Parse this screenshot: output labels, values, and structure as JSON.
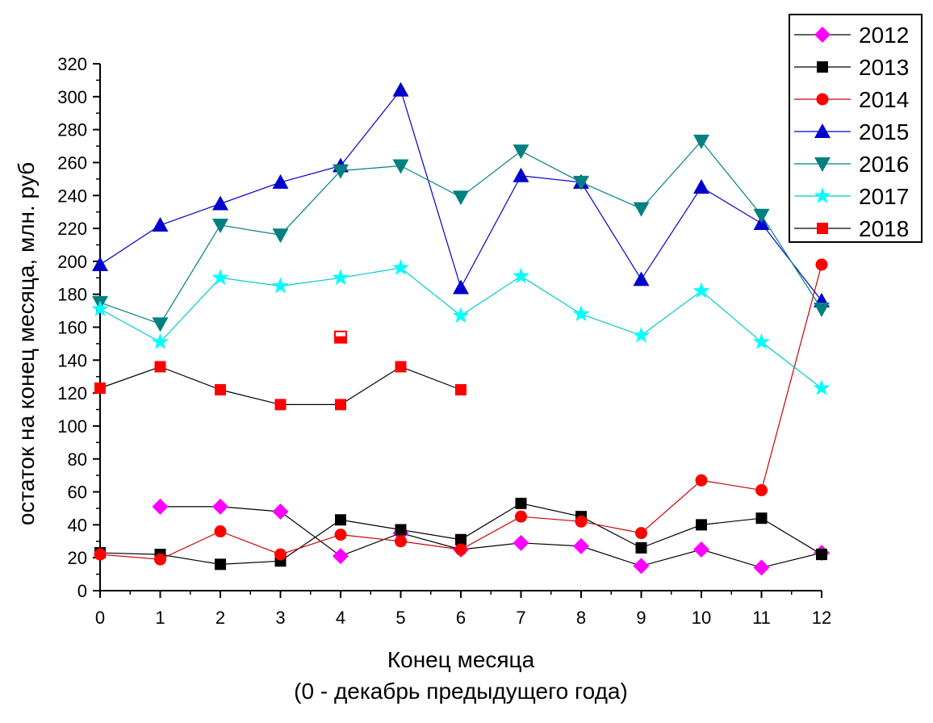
{
  "chart_data": {
    "type": "line",
    "xlabel": "Конец месяца",
    "xlabel_line2": "(0 - декабрь предыдущего года)",
    "ylabel": "остаток на конец месяца, млн. руб",
    "xlim": [
      0,
      12
    ],
    "ylim": [
      0,
      320
    ],
    "x_ticks": [
      0,
      1,
      2,
      3,
      4,
      5,
      6,
      7,
      8,
      9,
      10,
      11,
      12
    ],
    "y_ticks": [
      0,
      20,
      40,
      60,
      80,
      100,
      120,
      140,
      160,
      180,
      200,
      220,
      240,
      260,
      280,
      300,
      320
    ],
    "grid": false,
    "legend_position": "top-right",
    "series": [
      {
        "name": "2012",
        "marker": "diamond",
        "color": "#ff00ff",
        "line_color": "#000000",
        "x": [
          1,
          2,
          3,
          4,
          5,
          6,
          7,
          8,
          9,
          10,
          11,
          12
        ],
        "values": [
          51,
          51,
          48,
          21,
          35,
          25,
          29,
          27,
          15,
          25,
          14,
          23
        ]
      },
      {
        "name": "2013",
        "marker": "square",
        "color": "#000000",
        "line_color": "#000000",
        "x": [
          0,
          1,
          2,
          3,
          4,
          5,
          6,
          7,
          8,
          9,
          10,
          11,
          12
        ],
        "values": [
          23,
          22,
          16,
          18,
          43,
          37,
          31,
          53,
          45,
          26,
          40,
          44,
          22
        ]
      },
      {
        "name": "2014",
        "marker": "circle",
        "color": "#ff0000",
        "line_color": "#cc0000",
        "x": [
          0,
          1,
          2,
          3,
          4,
          5,
          6,
          7,
          8,
          9,
          10,
          11,
          12
        ],
        "values": [
          22,
          19,
          36,
          22,
          34,
          30,
          25,
          45,
          42,
          35,
          67,
          61,
          198
        ]
      },
      {
        "name": "2015",
        "marker": "triangle-up",
        "color": "#0000cc",
        "line_color": "#0000cc",
        "x": [
          0,
          1,
          2,
          3,
          4,
          5,
          6,
          7,
          8,
          9,
          10,
          11,
          12
        ],
        "values": [
          198,
          222,
          235,
          248,
          258,
          304,
          184,
          252,
          248,
          189,
          245,
          223,
          176
        ]
      },
      {
        "name": "2016",
        "marker": "triangle-down",
        "color": "#008080",
        "line_color": "#008080",
        "x": [
          0,
          1,
          2,
          3,
          4,
          5,
          6,
          7,
          8,
          9,
          10,
          11,
          12
        ],
        "values": [
          175,
          162,
          222,
          216,
          255,
          258,
          239,
          267,
          248,
          232,
          273,
          228,
          171
        ]
      },
      {
        "name": "2017",
        "marker": "star",
        "color": "#00ffff",
        "line_color": "#00cccc",
        "x": [
          0,
          1,
          2,
          3,
          4,
          5,
          6,
          7,
          8,
          9,
          10,
          11,
          12
        ],
        "values": [
          171,
          151,
          190,
          185,
          190,
          196,
          167,
          191,
          168,
          155,
          182,
          151,
          123
        ]
      },
      {
        "name": "2018",
        "marker": "square",
        "color": "#ff0000",
        "line_color": "#000000",
        "x": [
          0,
          1,
          2,
          3,
          4,
          5,
          6
        ],
        "values": [
          123,
          136,
          122,
          113,
          113,
          136,
          122
        ]
      }
    ],
    "annotations": [
      {
        "type": "half-filled-square",
        "x": 4,
        "y": 154,
        "color": "#ff0000"
      }
    ]
  }
}
